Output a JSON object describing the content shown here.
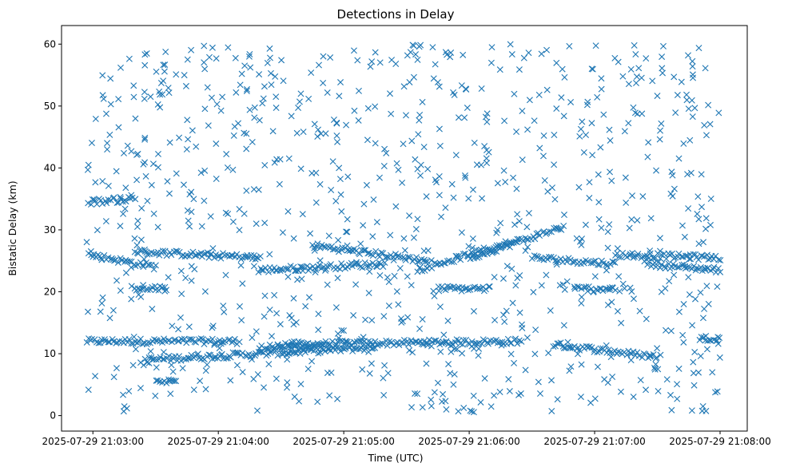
{
  "chart_data": {
    "type": "scatter",
    "title": "Detections in Delay",
    "xlabel": "Time (UTC)",
    "ylabel": "Bistatic Delay (km)",
    "xlim": [
      "2025-07-29 21:02:45",
      "2025-07-29 21:08:13"
    ],
    "ylim": [
      -2.5,
      63
    ],
    "x_ticks": [
      "2025-07-29 21:03:00",
      "2025-07-29 21:04:00",
      "2025-07-29 21:05:00",
      "2025-07-29 21:06:00",
      "2025-07-29 21:07:00",
      "2025-07-29 21:08:00"
    ],
    "y_ticks": [
      0,
      10,
      20,
      30,
      40,
      50,
      60
    ],
    "marker": "x",
    "color": "#1f77b4",
    "grid": false,
    "tracks": [
      {
        "x": [
          "21:02:57",
          "21:04:10"
        ],
        "y": [
          12,
          12
        ]
      },
      {
        "x": [
          "21:04:30",
          "21:06:25"
        ],
        "y": [
          11.5,
          12
        ]
      },
      {
        "x": [
          "21:03:25",
          "21:05:15"
        ],
        "y": [
          9,
          11
        ]
      },
      {
        "x": [
          "21:06:40",
          "21:07:30"
        ],
        "y": [
          11.5,
          9.5
        ]
      },
      {
        "x": [
          "21:07:50",
          "21:08:00"
        ],
        "y": [
          12.5,
          12.5
        ]
      },
      {
        "x": [
          "21:02:58",
          "21:03:30"
        ],
        "y": [
          26,
          24
        ]
      },
      {
        "x": [
          "21:03:20",
          "21:04:20"
        ],
        "y": [
          26.5,
          25.5
        ]
      },
      {
        "x": [
          "21:04:45",
          "21:05:40"
        ],
        "y": [
          27.5,
          25
        ]
      },
      {
        "x": [
          "21:04:20",
          "21:05:20"
        ],
        "y": [
          23.5,
          24.5
        ]
      },
      {
        "x": [
          "21:05:35",
          "21:06:20"
        ],
        "y": [
          23.5,
          28
        ]
      },
      {
        "x": [
          "21:06:00",
          "21:06:45"
        ],
        "y": [
          25.5,
          30.5
        ]
      },
      {
        "x": [
          "21:06:30",
          "21:07:10"
        ],
        "y": [
          25.5,
          24.5
        ]
      },
      {
        "x": [
          "21:07:10",
          "21:08:00"
        ],
        "y": [
          26,
          25.5
        ]
      },
      {
        "x": [
          "21:07:25",
          "21:08:00"
        ],
        "y": [
          24.5,
          23.5
        ]
      },
      {
        "x": [
          "21:02:58",
          "21:03:20"
        ],
        "y": [
          34.5,
          35
        ]
      },
      {
        "x": [
          "21:03:20",
          "21:03:35"
        ],
        "y": [
          20.5,
          20.5
        ]
      },
      {
        "x": [
          "21:05:45",
          "21:06:10"
        ],
        "y": [
          20.5,
          20.5
        ]
      },
      {
        "x": [
          "21:06:50",
          "21:07:10"
        ],
        "y": [
          20.5,
          20.5
        ]
      },
      {
        "x": [
          "21:04:20",
          "21:04:50"
        ],
        "y": [
          11,
          11
        ]
      },
      {
        "x": [
          "21:03:30",
          "21:03:40"
        ],
        "y": [
          5.5,
          5.5
        ]
      }
    ],
    "scattered_points": {
      "count": 900,
      "x_range": [
        "21:02:57",
        "21:08:00"
      ],
      "y_range": [
        0.5,
        60
      ]
    }
  }
}
